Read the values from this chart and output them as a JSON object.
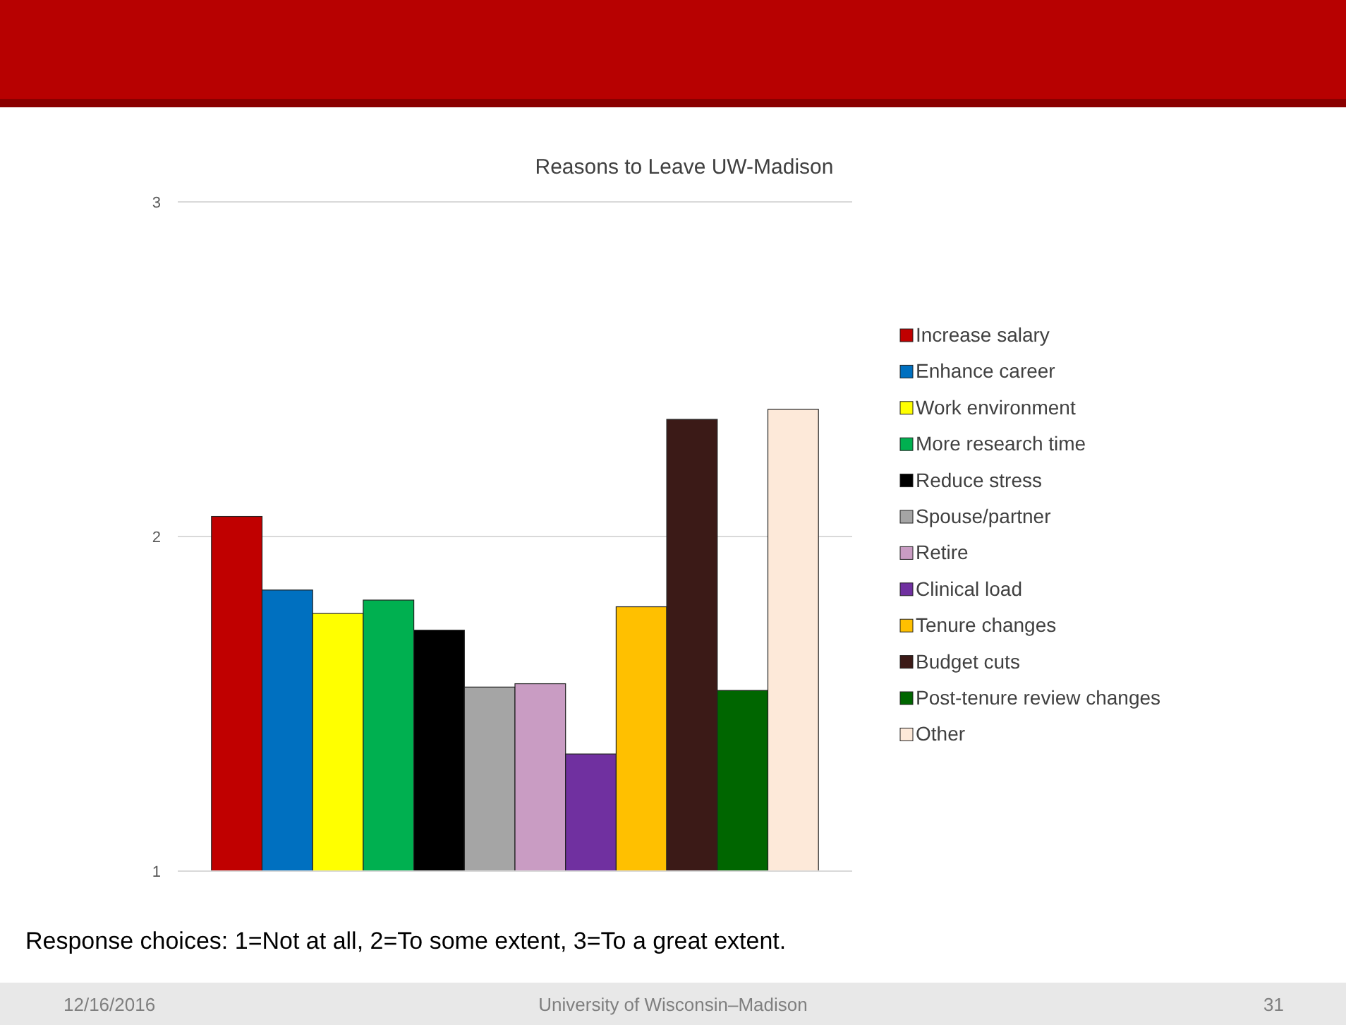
{
  "chart_data": {
    "type": "bar",
    "title": "Reasons to Leave UW-Madison",
    "categories": [
      null
    ],
    "series": [
      {
        "name": "Increase salary",
        "color": "#c00000",
        "values": [
          2.06
        ]
      },
      {
        "name": "Enhance career",
        "color": "#0070c0",
        "values": [
          1.84
        ]
      },
      {
        "name": "Work environment",
        "color": "#ffff00",
        "values": [
          1.77
        ]
      },
      {
        "name": "More research time",
        "color": "#00b050",
        "values": [
          1.81
        ]
      },
      {
        "name": "Reduce stress",
        "color": "#000000",
        "values": [
          1.72
        ]
      },
      {
        "name": "Spouse/partner",
        "color": "#a5a5a5",
        "values": [
          1.55
        ]
      },
      {
        "name": "Retire",
        "color": "#c99cc3",
        "values": [
          1.56
        ]
      },
      {
        "name": "Clinical load",
        "color": "#7030a0",
        "values": [
          1.35
        ]
      },
      {
        "name": "Tenure changes",
        "color": "#ffc000",
        "values": [
          1.79
        ]
      },
      {
        "name": "Budget cuts",
        "color": "#3b1a17",
        "values": [
          2.35
        ]
      },
      {
        "name": "Post-tenure review changes",
        "color": "#006600",
        "values": [
          1.54
        ]
      },
      {
        "name": "Other",
        "color": "#fde9d9",
        "values": [
          2.38
        ]
      }
    ],
    "ylim": [
      1,
      3
    ],
    "yticks": [
      1,
      2,
      3
    ],
    "grid": "y",
    "legend": "right",
    "annotations": [
      "Response choices:  1=Not at all, 2=To some extent, 3=To a great extent.",
      "12/16/2016",
      "University of Wisconsin–Madison",
      "31"
    ]
  }
}
